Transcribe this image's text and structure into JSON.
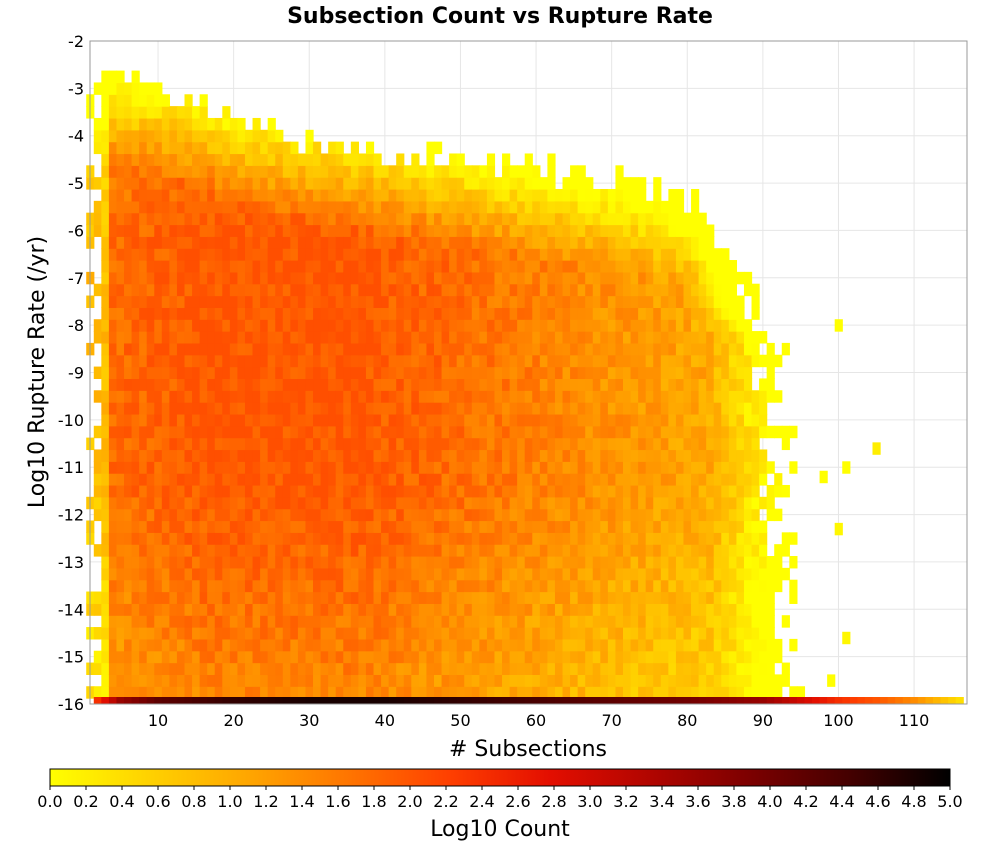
{
  "chart_data": {
    "type": "heatmap",
    "title": "Subsection Count vs Rupture Rate",
    "xlabel": "# Subsections",
    "ylabel": "Log10 Rupture Rate (/yr)",
    "xlim": [
      1,
      117
    ],
    "ylim": [
      -16,
      -2
    ],
    "x_ticks": [
      10,
      20,
      30,
      40,
      50,
      60,
      70,
      80,
      90,
      100,
      110
    ],
    "y_ticks": [
      -2,
      -3,
      -4,
      -5,
      -6,
      -7,
      -8,
      -9,
      -10,
      -11,
      -12,
      -13,
      -14,
      -15,
      -16
    ],
    "x_bin_width": 1,
    "y_bin_width": 0.25,
    "grid": true,
    "z_label": "Log10 Count",
    "z_range": [
      0.0,
      5.0
    ],
    "colorbar_ticks": [
      "0.0",
      "0.2",
      "0.4",
      "0.6",
      "0.8",
      "1.0",
      "1.2",
      "1.4",
      "1.6",
      "1.8",
      "2.0",
      "2.2",
      "2.4",
      "2.6",
      "2.8",
      "3.0",
      "3.2",
      "3.4",
      "3.6",
      "3.8",
      "4.0",
      "4.2",
      "4.4",
      "4.6",
      "4.8",
      "5.0"
    ],
    "colormap": [
      "#ffff00",
      "#ffd100",
      "#ffa500",
      "#ff7400",
      "#ff3f00",
      "#e30e00",
      "#b10500",
      "#7c0000",
      "#440000",
      "#000000"
    ],
    "colorbar_placement": "bottom",
    "envelope": {
      "description": "approximate top log10 rate of non-empty bins by subsection count",
      "x": [
        2,
        4,
        8,
        12,
        20,
        30,
        40,
        50,
        60,
        70,
        80,
        85,
        90,
        93,
        95
      ],
      "y_top": [
        -3.0,
        -3.0,
        -3.2,
        -3.4,
        -4.0,
        -4.4,
        -4.6,
        -4.8,
        -5.0,
        -5.2,
        -5.6,
        -6.6,
        -7.4,
        -7.8,
        -8.8
      ],
      "x_right_edge": [
        [
          -6,
          88
        ],
        [
          -8,
          92
        ],
        [
          -10,
          94
        ],
        [
          -12,
          95
        ],
        [
          -14,
          95
        ],
        [
          -15.8,
          96
        ]
      ]
    },
    "dense_core": {
      "description": "region of highest interior log10 count",
      "x_range": [
        8,
        45
      ],
      "y_range": [
        -12,
        -5.5
      ],
      "peak_log10_count": 2.0
    },
    "bottom_row": {
      "description": "bins at log10 rate = -16 (zero-rate ruptures)",
      "y": -16,
      "x": [
        2,
        5,
        10,
        20,
        30,
        40,
        50,
        60,
        70,
        80,
        90,
        95,
        100,
        105,
        110,
        116
      ],
      "log10_count": [
        2.4,
        3.6,
        4.2,
        4.6,
        4.8,
        4.8,
        4.6,
        4.4,
        4.2,
        4.0,
        3.6,
        3.0,
        2.4,
        2.0,
        1.4,
        0.4
      ]
    },
    "outliers": [
      {
        "x": 100,
        "y": -8.0,
        "log10_count": 0.0
      },
      {
        "x": 105,
        "y": -10.6,
        "log10_count": 0.2
      },
      {
        "x": 101,
        "y": -11.0,
        "log10_count": 0.0
      },
      {
        "x": 98,
        "y": -11.2,
        "log10_count": 0.0
      },
      {
        "x": 100,
        "y": -12.3,
        "log10_count": 0.1
      },
      {
        "x": 101,
        "y": -14.6,
        "log10_count": 0.1
      },
      {
        "x": 99,
        "y": -15.5,
        "log10_count": 0.0
      }
    ]
  }
}
